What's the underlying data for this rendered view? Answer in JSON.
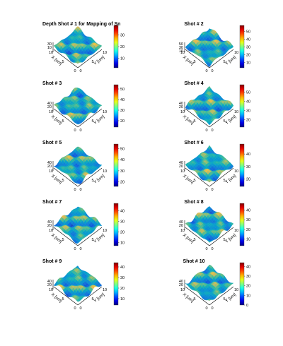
{
  "chart_data": [
    {
      "type": "heatmap",
      "title": "Depth Shot # 1 for Mapping of Sn",
      "xlabel": "X [um]",
      "ylabel": "Y [um]",
      "z_ticks": [
        "30",
        "10"
      ],
      "x_ticks": [
        "10",
        "5",
        "0"
      ],
      "y_ticks": [
        "0",
        "5",
        "10"
      ],
      "colorbar": {
        "ticks": [
          10,
          20,
          30
        ],
        "range": [
          2,
          38
        ]
      }
    },
    {
      "type": "heatmap",
      "title": "Shot # 2",
      "xlabel": "X [um]",
      "ylabel": "Y [um]",
      "z_ticks": [
        "50",
        "30",
        "10"
      ],
      "x_ticks": [
        "10",
        "5",
        "0"
      ],
      "y_ticks": [
        "0",
        "5",
        "10"
      ],
      "colorbar": {
        "ticks": [
          10,
          20,
          30,
          40,
          50
        ],
        "range": [
          3,
          58
        ]
      }
    },
    {
      "type": "heatmap",
      "title": "Shot # 3",
      "xlabel": "X [um]",
      "ylabel": "Y [um]",
      "z_ticks": [
        "40",
        "20"
      ],
      "x_ticks": [
        "10",
        "5",
        "0"
      ],
      "y_ticks": [
        "0",
        "5",
        "10"
      ],
      "colorbar": {
        "ticks": [
          20,
          30,
          40,
          50
        ],
        "range": [
          14,
          54
        ]
      }
    },
    {
      "type": "heatmap",
      "title": "Shot # 4",
      "xlabel": "X [um]",
      "ylabel": "Y [um]",
      "z_ticks": [
        "40",
        "20"
      ],
      "x_ticks": [
        "10",
        "5",
        "0"
      ],
      "y_ticks": [
        "0",
        "5",
        "10"
      ],
      "colorbar": {
        "ticks": [
          20,
          30,
          40,
          50
        ],
        "range": [
          12,
          58
        ]
      }
    },
    {
      "type": "heatmap",
      "title": "Shot # 5",
      "xlabel": "X [um]",
      "ylabel": "Y [um]",
      "z_ticks": [
        "40",
        "20"
      ],
      "x_ticks": [
        "10",
        "5",
        "0"
      ],
      "y_ticks": [
        "0",
        "5",
        "10"
      ],
      "colorbar": {
        "ticks": [
          20,
          30,
          40,
          50
        ],
        "range": [
          16,
          54
        ]
      }
    },
    {
      "type": "heatmap",
      "title": "Shot # 6",
      "xlabel": "X [um]",
      "ylabel": "Y [um]",
      "z_ticks": [
        "40",
        "20"
      ],
      "x_ticks": [
        "10",
        "5",
        "0"
      ],
      "y_ticks": [
        "0",
        "5",
        "10"
      ],
      "colorbar": {
        "ticks": [
          20,
          30,
          40
        ],
        "range": [
          14,
          48
        ]
      }
    },
    {
      "type": "heatmap",
      "title": "Shot # 7",
      "xlabel": "X [um]",
      "ylabel": "Y [um]",
      "z_ticks": [
        "40",
        "20"
      ],
      "x_ticks": [
        "10",
        "5",
        "0"
      ],
      "y_ticks": [
        "0",
        "5",
        "10"
      ],
      "colorbar": {
        "ticks": [
          10,
          20,
          30,
          40
        ],
        "range": [
          7,
          47
        ]
      }
    },
    {
      "type": "heatmap",
      "title": "Shot # 8",
      "xlabel": "X [um]",
      "ylabel": "Y [um]",
      "z_ticks": [
        "40",
        "20"
      ],
      "x_ticks": [
        "10",
        "5",
        "0"
      ],
      "y_ticks": [
        "0",
        "5",
        "10"
      ],
      "colorbar": {
        "ticks": [
          10,
          20,
          30,
          40
        ],
        "range": [
          3,
          47
        ]
      }
    },
    {
      "type": "heatmap",
      "title": "Shot # 9",
      "xlabel": "X [um]",
      "ylabel": "Y [um]",
      "z_ticks": [
        "40",
        "20"
      ],
      "x_ticks": [
        "10",
        "5",
        "0"
      ],
      "y_ticks": [
        "0",
        "5",
        "10"
      ],
      "colorbar": {
        "ticks": [
          10,
          20,
          30,
          40
        ],
        "range": [
          4,
          44
        ]
      }
    },
    {
      "type": "heatmap",
      "title": "Shot # 10",
      "xlabel": "X [um]",
      "ylabel": "Y [um]",
      "z_ticks": [
        "40",
        "20"
      ],
      "x_ticks": [
        "10",
        "5",
        "0"
      ],
      "y_ticks": [
        "0",
        "5",
        "10"
      ],
      "colorbar": {
        "ticks": [
          0,
          10,
          20,
          30,
          40
        ],
        "range": [
          0,
          44
        ]
      }
    }
  ]
}
